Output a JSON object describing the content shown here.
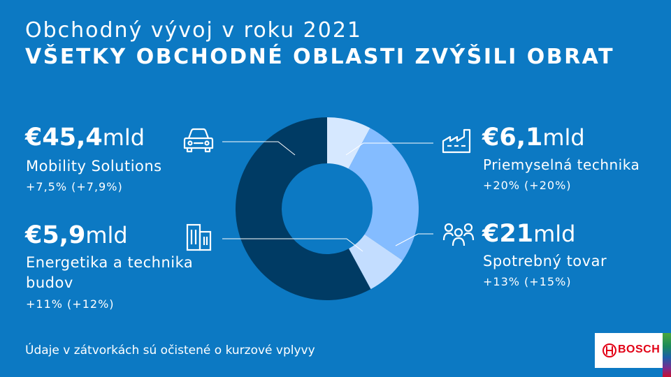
{
  "header": {
    "title": "Obchodný vývoj v roku 2021",
    "subtitle": "VŠETKY OBCHODNÉ OBLASTI ZVÝŠILI OBRAT"
  },
  "segments": {
    "mobility": {
      "value_num": "€45,4",
      "value_unit": "mld",
      "label": "Mobility Solutions",
      "change": "+7,5% (+7,9%)",
      "icon": "car-icon"
    },
    "energy": {
      "value_num": "€5,9",
      "value_unit": "mld",
      "label_line1": "Energetika a technika",
      "label_line2": "budov",
      "change": "+11% (+12%)",
      "icon": "building-icon"
    },
    "industrial": {
      "value_num": "€6,1",
      "value_unit": "mld",
      "label": "Priemyselná technika",
      "change": "+20% (+20%)",
      "icon": "factory-icon"
    },
    "consumer": {
      "value_num": "€21",
      "value_unit": "mld",
      "label": "Spotrebný tovar",
      "change": "+13% (+15%)",
      "icon": "people-icon"
    }
  },
  "footnote": "Údaje v zátvorkách sú očistené o kurzové vplyvy",
  "logo": {
    "text": "BOSCH"
  },
  "colors": {
    "background": "#0c79c3",
    "mobility": "#003b64",
    "industrial": "#d6e8ff",
    "consumer": "#84bcff",
    "energy": "#c3ddff"
  },
  "chart_data": {
    "type": "pie",
    "donut": true,
    "unit": "mld €",
    "slices": [
      {
        "name": "Priemyselná technika",
        "value": 6.1,
        "color": "#d6e8ff"
      },
      {
        "name": "Spotrebný tovar",
        "value": 21,
        "color": "#84bcff"
      },
      {
        "name": "Energetika a technika budov",
        "value": 5.9,
        "color": "#c3ddff"
      },
      {
        "name": "Mobility Solutions",
        "value": 45.4,
        "color": "#003b64"
      }
    ]
  }
}
